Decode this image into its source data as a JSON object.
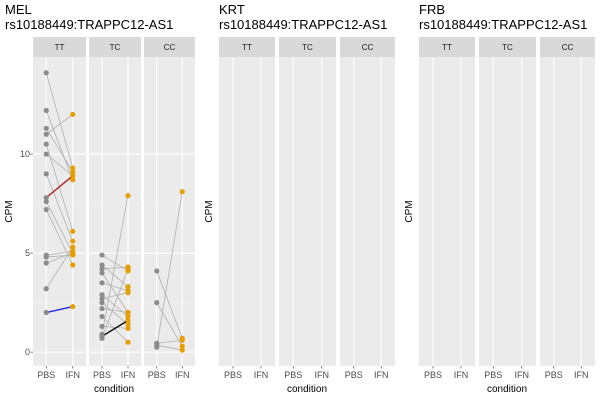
{
  "chart_data": [
    {
      "type": "scatter",
      "title_line1": "MEL",
      "title_line2": "rs10188449:TRAPPC12-AS1",
      "xlabel": "condition",
      "ylabel": "CPM",
      "x_categories": [
        "PBS",
        "IFN"
      ],
      "y_ticks": [
        0,
        5,
        10
      ],
      "ylim": [
        -0.7,
        14.9
      ],
      "grid": true,
      "colors": {
        "PBS": "#8c8c8c",
        "IFN": "#e69f00",
        "pair_line": "#b0b0b0",
        "red": "#b22222",
        "blue": "#1f2be0",
        "black": "#000000"
      },
      "facets": [
        {
          "label": "TT",
          "pairs": [
            {
              "PBS": 14.1,
              "IFN": 9.3
            },
            {
              "PBS": 12.2,
              "IFN": 8.7
            },
            {
              "PBS": 11.3,
              "IFN": 9.1
            },
            {
              "PBS": 11.0,
              "IFN": 12.0
            },
            {
              "PBS": 10.5,
              "IFN": 6.1
            },
            {
              "PBS": 10.0,
              "IFN": 8.9
            },
            {
              "PBS": 9.0,
              "IFN": 5.6
            },
            {
              "PBS": 7.8,
              "IFN": 8.9,
              "color": "red"
            },
            {
              "PBS": 7.6,
              "IFN": 5.0
            },
            {
              "PBS": 7.2,
              "IFN": 4.4
            },
            {
              "PBS": 4.9,
              "IFN": 5.1
            },
            {
              "PBS": 4.8,
              "IFN": 4.9
            },
            {
              "PBS": 4.5,
              "IFN": 5.0
            },
            {
              "PBS": 3.2,
              "IFN": 5.3
            },
            {
              "PBS": 2.0,
              "IFN": 2.3,
              "color": "blue"
            }
          ]
        },
        {
          "label": "TC",
          "pairs": [
            {
              "PBS": 4.9,
              "IFN": 4.1
            },
            {
              "PBS": 4.4,
              "IFN": 3.3
            },
            {
              "PBS": 4.2,
              "IFN": 4.3
            },
            {
              "PBS": 4.0,
              "IFN": 2.0
            },
            {
              "PBS": 3.5,
              "IFN": 3.1
            },
            {
              "PBS": 2.9,
              "IFN": 1.8
            },
            {
              "PBS": 2.7,
              "IFN": 3.0
            },
            {
              "PBS": 2.5,
              "IFN": 1.4
            },
            {
              "PBS": 2.2,
              "IFN": 2.0
            },
            {
              "PBS": 1.8,
              "IFN": 0.5
            },
            {
              "PBS": 1.3,
              "IFN": 1.2
            },
            {
              "PBS": 0.9,
              "IFN": 7.9
            },
            {
              "PBS": 0.8,
              "IFN": 1.6,
              "color": "black"
            },
            {
              "PBS": 0.7,
              "IFN": 4.2
            }
          ]
        },
        {
          "label": "CC",
          "pairs": [
            {
              "PBS": 4.1,
              "IFN": 0.7
            },
            {
              "PBS": 2.5,
              "IFN": 0.3
            },
            {
              "PBS": 0.45,
              "IFN": 0.6
            },
            {
              "PBS": 0.35,
              "IFN": 0.1
            },
            {
              "PBS": 0.25,
              "IFN": 8.1
            }
          ]
        }
      ]
    },
    {
      "type": "scatter",
      "title_line1": "KRT",
      "title_line2": "rs10188449:TRAPPC12-AS1",
      "xlabel": "condition",
      "ylabel": "CPM",
      "x_categories": [
        "PBS",
        "IFN"
      ],
      "y_ticks": [],
      "grid": true,
      "facets": [
        {
          "label": "TT",
          "pairs": []
        },
        {
          "label": "TC",
          "pairs": []
        },
        {
          "label": "CC",
          "pairs": []
        }
      ]
    },
    {
      "type": "scatter",
      "title_line1": "FRB",
      "title_line2": "rs10188449:TRAPPC12-AS1",
      "xlabel": "condition",
      "ylabel": "CPM",
      "x_categories": [
        "PBS",
        "IFN"
      ],
      "y_ticks": [],
      "grid": true,
      "facets": [
        {
          "label": "TT",
          "pairs": []
        },
        {
          "label": "TC",
          "pairs": []
        },
        {
          "label": "CC",
          "pairs": []
        }
      ]
    }
  ]
}
